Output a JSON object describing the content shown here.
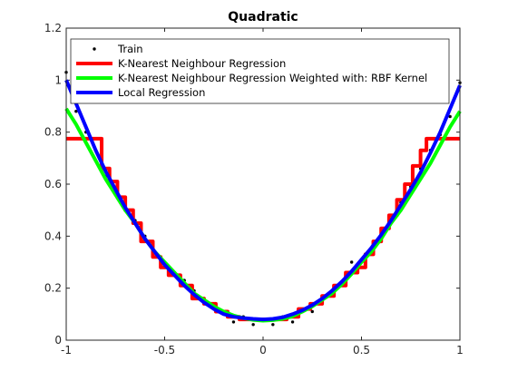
{
  "chart_data": {
    "type": "line",
    "title": "Quadratic",
    "xlabel": "",
    "ylabel": "",
    "xlim": [
      -1,
      1
    ],
    "ylim": [
      0,
      1.2
    ],
    "grid": false,
    "legend_placement": "top",
    "x_ticks": [
      {
        "value": -1,
        "label": "-1"
      },
      {
        "value": -0.5,
        "label": "-0.5"
      },
      {
        "value": 0,
        "label": "0"
      },
      {
        "value": 0.5,
        "label": "0.5"
      },
      {
        "value": 1,
        "label": "1"
      }
    ],
    "y_ticks": [
      {
        "value": 0,
        "label": "0"
      },
      {
        "value": 0.2,
        "label": "0.2"
      },
      {
        "value": 0.4,
        "label": "0.4"
      },
      {
        "value": 0.6,
        "label": "0.6"
      },
      {
        "value": 0.8,
        "label": "0.8"
      },
      {
        "value": 1,
        "label": "1"
      },
      {
        "value": 1.2,
        "label": "1.2"
      }
    ],
    "series": [
      {
        "name": "Train",
        "kind": "scatter",
        "color": "#000000",
        "points": [
          [
            -1.0,
            1.03
          ],
          [
            -0.95,
            0.88
          ],
          [
            -0.9,
            0.8
          ],
          [
            -0.85,
            0.73
          ],
          [
            -0.8,
            0.63
          ],
          [
            -0.75,
            0.56
          ],
          [
            -0.7,
            0.51
          ],
          [
            -0.65,
            0.46
          ],
          [
            -0.6,
            0.4
          ],
          [
            -0.55,
            0.34
          ],
          [
            -0.5,
            0.3
          ],
          [
            -0.45,
            0.26
          ],
          [
            -0.4,
            0.23
          ],
          [
            -0.35,
            0.19
          ],
          [
            -0.3,
            0.16
          ],
          [
            -0.25,
            0.13
          ],
          [
            -0.2,
            0.1
          ],
          [
            -0.15,
            0.07
          ],
          [
            -0.1,
            0.09
          ],
          [
            -0.05,
            0.06
          ],
          [
            0.0,
            0.08
          ],
          [
            0.05,
            0.06
          ],
          [
            0.1,
            0.09
          ],
          [
            0.15,
            0.07
          ],
          [
            0.2,
            0.12
          ],
          [
            0.25,
            0.11
          ],
          [
            0.3,
            0.14
          ],
          [
            0.35,
            0.19
          ],
          [
            0.4,
            0.22
          ],
          [
            0.45,
            0.3
          ],
          [
            0.5,
            0.28
          ],
          [
            0.55,
            0.35
          ],
          [
            0.6,
            0.4
          ],
          [
            0.65,
            0.46
          ],
          [
            0.7,
            0.53
          ],
          [
            0.75,
            0.59
          ],
          [
            0.8,
            0.66
          ],
          [
            0.85,
            0.73
          ],
          [
            0.9,
            0.79
          ],
          [
            0.95,
            0.86
          ],
          [
            1.0,
            0.99
          ]
        ]
      },
      {
        "name": "K-Nearest Neighbour Regression",
        "kind": "step",
        "color": "#ff0000",
        "points": [
          [
            -1.0,
            0.775
          ],
          [
            -0.82,
            0.775
          ],
          [
            -0.82,
            0.66
          ],
          [
            -0.78,
            0.66
          ],
          [
            -0.78,
            0.61
          ],
          [
            -0.74,
            0.61
          ],
          [
            -0.74,
            0.55
          ],
          [
            -0.7,
            0.55
          ],
          [
            -0.7,
            0.5
          ],
          [
            -0.66,
            0.5
          ],
          [
            -0.66,
            0.45
          ],
          [
            -0.62,
            0.45
          ],
          [
            -0.62,
            0.38
          ],
          [
            -0.56,
            0.38
          ],
          [
            -0.56,
            0.32
          ],
          [
            -0.52,
            0.32
          ],
          [
            -0.52,
            0.28
          ],
          [
            -0.48,
            0.28
          ],
          [
            -0.48,
            0.25
          ],
          [
            -0.42,
            0.25
          ],
          [
            -0.42,
            0.21
          ],
          [
            -0.36,
            0.21
          ],
          [
            -0.36,
            0.16
          ],
          [
            -0.3,
            0.16
          ],
          [
            -0.3,
            0.14
          ],
          [
            -0.24,
            0.14
          ],
          [
            -0.24,
            0.11
          ],
          [
            -0.18,
            0.11
          ],
          [
            -0.18,
            0.09
          ],
          [
            -0.12,
            0.09
          ],
          [
            -0.12,
            0.08
          ],
          [
            0.12,
            0.08
          ],
          [
            0.12,
            0.09
          ],
          [
            0.18,
            0.09
          ],
          [
            0.18,
            0.12
          ],
          [
            0.24,
            0.12
          ],
          [
            0.24,
            0.14
          ],
          [
            0.3,
            0.14
          ],
          [
            0.3,
            0.17
          ],
          [
            0.36,
            0.17
          ],
          [
            0.36,
            0.21
          ],
          [
            0.42,
            0.21
          ],
          [
            0.42,
            0.26
          ],
          [
            0.48,
            0.26
          ],
          [
            0.48,
            0.28
          ],
          [
            0.52,
            0.28
          ],
          [
            0.52,
            0.33
          ],
          [
            0.56,
            0.33
          ],
          [
            0.56,
            0.38
          ],
          [
            0.6,
            0.38
          ],
          [
            0.6,
            0.43
          ],
          [
            0.64,
            0.43
          ],
          [
            0.64,
            0.48
          ],
          [
            0.68,
            0.48
          ],
          [
            0.68,
            0.54
          ],
          [
            0.72,
            0.54
          ],
          [
            0.72,
            0.6
          ],
          [
            0.76,
            0.6
          ],
          [
            0.76,
            0.67
          ],
          [
            0.8,
            0.67
          ],
          [
            0.8,
            0.73
          ],
          [
            0.83,
            0.73
          ],
          [
            0.83,
            0.775
          ],
          [
            1.0,
            0.775
          ]
        ]
      },
      {
        "name": "K-Nearest Neighbour Regression Weighted with: RBF Kernel",
        "kind": "line",
        "color": "#00ff00",
        "points": [
          [
            -1.0,
            0.89
          ],
          [
            -0.95,
            0.83
          ],
          [
            -0.9,
            0.76
          ],
          [
            -0.85,
            0.69
          ],
          [
            -0.8,
            0.62
          ],
          [
            -0.75,
            0.56
          ],
          [
            -0.7,
            0.5
          ],
          [
            -0.65,
            0.45
          ],
          [
            -0.6,
            0.39
          ],
          [
            -0.55,
            0.34
          ],
          [
            -0.5,
            0.3
          ],
          [
            -0.45,
            0.26
          ],
          [
            -0.4,
            0.22
          ],
          [
            -0.35,
            0.18
          ],
          [
            -0.3,
            0.155
          ],
          [
            -0.25,
            0.13
          ],
          [
            -0.2,
            0.11
          ],
          [
            -0.15,
            0.095
          ],
          [
            -0.1,
            0.085
          ],
          [
            -0.05,
            0.078
          ],
          [
            0.0,
            0.075
          ],
          [
            0.05,
            0.077
          ],
          [
            0.1,
            0.082
          ],
          [
            0.15,
            0.092
          ],
          [
            0.2,
            0.11
          ],
          [
            0.25,
            0.13
          ],
          [
            0.3,
            0.155
          ],
          [
            0.35,
            0.18
          ],
          [
            0.4,
            0.215
          ],
          [
            0.45,
            0.255
          ],
          [
            0.5,
            0.3
          ],
          [
            0.55,
            0.34
          ],
          [
            0.6,
            0.39
          ],
          [
            0.65,
            0.45
          ],
          [
            0.7,
            0.5
          ],
          [
            0.75,
            0.56
          ],
          [
            0.8,
            0.62
          ],
          [
            0.85,
            0.68
          ],
          [
            0.9,
            0.75
          ],
          [
            0.95,
            0.82
          ],
          [
            1.0,
            0.88
          ]
        ]
      },
      {
        "name": "Local Regression",
        "kind": "line",
        "color": "#0000ff",
        "points": [
          [
            -1.0,
            1.0
          ],
          [
            -0.95,
            0.91
          ],
          [
            -0.9,
            0.82
          ],
          [
            -0.85,
            0.73
          ],
          [
            -0.8,
            0.65
          ],
          [
            -0.75,
            0.58
          ],
          [
            -0.7,
            0.51
          ],
          [
            -0.65,
            0.45
          ],
          [
            -0.6,
            0.39
          ],
          [
            -0.55,
            0.34
          ],
          [
            -0.5,
            0.29
          ],
          [
            -0.45,
            0.25
          ],
          [
            -0.4,
            0.21
          ],
          [
            -0.35,
            0.175
          ],
          [
            -0.3,
            0.145
          ],
          [
            -0.25,
            0.12
          ],
          [
            -0.2,
            0.1
          ],
          [
            -0.15,
            0.09
          ],
          [
            -0.1,
            0.085
          ],
          [
            -0.05,
            0.082
          ],
          [
            0.0,
            0.08
          ],
          [
            0.05,
            0.082
          ],
          [
            0.1,
            0.088
          ],
          [
            0.15,
            0.1
          ],
          [
            0.2,
            0.115
          ],
          [
            0.25,
            0.135
          ],
          [
            0.3,
            0.16
          ],
          [
            0.35,
            0.19
          ],
          [
            0.4,
            0.225
          ],
          [
            0.45,
            0.265
          ],
          [
            0.5,
            0.31
          ],
          [
            0.55,
            0.355
          ],
          [
            0.6,
            0.405
          ],
          [
            0.65,
            0.46
          ],
          [
            0.7,
            0.52
          ],
          [
            0.75,
            0.58
          ],
          [
            0.8,
            0.645
          ],
          [
            0.85,
            0.72
          ],
          [
            0.9,
            0.8
          ],
          [
            0.95,
            0.89
          ],
          [
            1.0,
            0.98
          ]
        ]
      }
    ]
  }
}
